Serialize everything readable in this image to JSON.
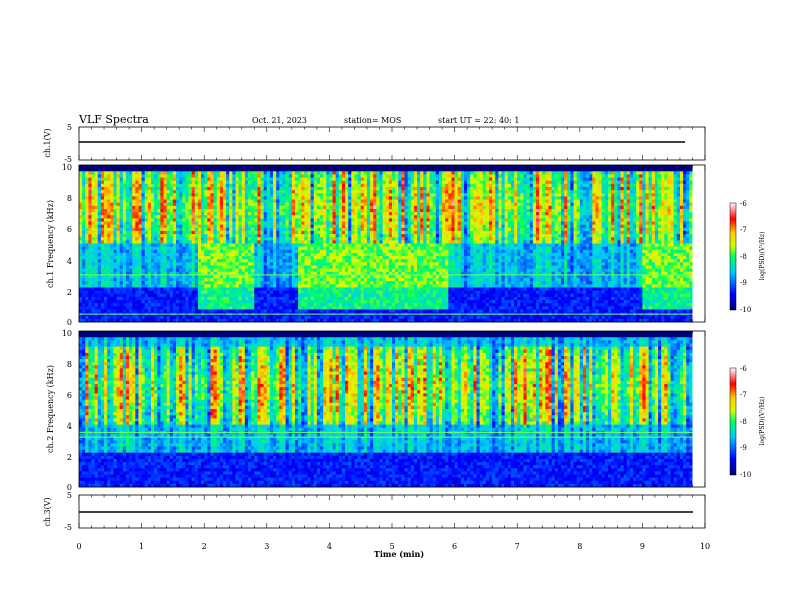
{
  "header": {
    "title": "VLF Spectra",
    "date": "Oct. 21, 2023",
    "station": "station= MOS",
    "start_ut": "start  UT =   22: 40: 1"
  },
  "chart_data": [
    {
      "type": "line",
      "panel": "ch1-voltage",
      "ylabel": "ch.1(V)",
      "ylim": [
        -5,
        5
      ],
      "yticks": [
        "5",
        "-5"
      ],
      "x": [
        0,
        9.8
      ],
      "series": [
        {
          "values": [
            0,
            0
          ]
        }
      ]
    },
    {
      "type": "heatmap",
      "panel": "ch1-spectrogram",
      "ylabel": "ch.1 Frequency (kHz)",
      "xlim": [
        0,
        10
      ],
      "ylim": [
        0,
        10
      ],
      "yticks": [
        "0",
        "2",
        "4",
        "6",
        "8",
        "10"
      ],
      "data_extent_x": [
        0,
        9.8
      ],
      "colorbar": {
        "label": "log(PSD)(V²/Hz)",
        "range": [
          -10,
          -6
        ],
        "ticks": [
          "-6",
          "-7",
          "-8",
          "-9",
          "-10"
        ]
      },
      "features": {
        "emission_band_khz": [
          5,
          9.5
        ],
        "noise_floor_band_khz": [
          0,
          2
        ],
        "enhanced_low_freq_bursts_min": [
          [
            1.9,
            2.8
          ],
          [
            3.5,
            5.9
          ],
          [
            9.0,
            9.8
          ]
        ],
        "horizontal_lines_khz": [
          0.5,
          3.0
        ]
      }
    },
    {
      "type": "heatmap",
      "panel": "ch2-spectrogram",
      "ylabel": "ch.2 Frequency (kHz)",
      "xlim": [
        0,
        10
      ],
      "ylim": [
        0,
        10
      ],
      "yticks": [
        "0",
        "2",
        "4",
        "6",
        "8",
        "10"
      ],
      "data_extent_x": [
        0,
        9.8
      ],
      "colorbar": {
        "label": "log(PSD)(V²/Hz)",
        "range": [
          -10,
          -6
        ],
        "ticks": [
          "-6",
          "-7",
          "-8",
          "-9",
          "-10"
        ]
      },
      "features": {
        "emission_band_khz": [
          4,
          9
        ],
        "noise_floor_band_khz": [
          0,
          3
        ],
        "horizontal_lines_khz": [
          3.2,
          3.5
        ]
      }
    },
    {
      "type": "line",
      "panel": "ch3-voltage",
      "ylabel": "ch.3(V)",
      "ylim": [
        -5,
        5
      ],
      "yticks": [
        "5",
        "-5"
      ],
      "xlabel": "Time  (min)",
      "xticks": [
        "0",
        "1",
        "2",
        "3",
        "4",
        "5",
        "6",
        "7",
        "8",
        "9",
        "10"
      ],
      "x": [
        0,
        9.8
      ],
      "series": [
        {
          "values": [
            0,
            0
          ]
        }
      ]
    }
  ],
  "colors": {
    "colormap": [
      "#00007a",
      "#0000ff",
      "#00c8ff",
      "#00ff60",
      "#d0ff00",
      "#ffd000",
      "#ff0000",
      "#ffffff"
    ],
    "axes": "#000000",
    "background": "#ffffff"
  }
}
